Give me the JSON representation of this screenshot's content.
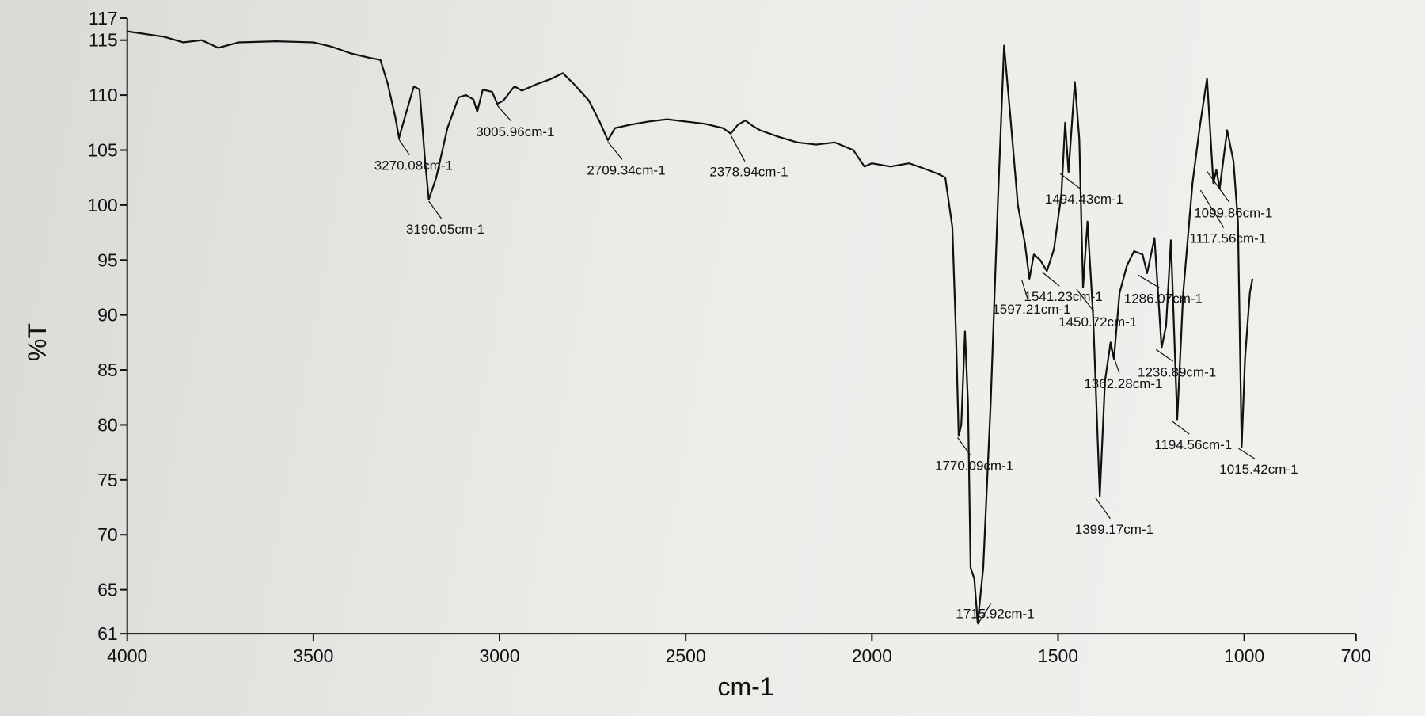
{
  "chart_data": {
    "type": "line",
    "xlabel": "cm-1",
    "ylabel": "%T",
    "xlim": [
      4000,
      700
    ],
    "xticks": [
      4000,
      3500,
      3000,
      2500,
      2000,
      1500,
      1000,
      700
    ],
    "ylim": [
      61,
      117
    ],
    "yticks": [
      61,
      65,
      70,
      75,
      80,
      85,
      90,
      95,
      100,
      105,
      110,
      115,
      117
    ],
    "color": "#111111",
    "x": [
      4000,
      3900,
      3850,
      3800,
      3756,
      3700,
      3600,
      3500,
      3450,
      3400,
      3350,
      3320,
      3300,
      3280,
      3270,
      3250,
      3230,
      3215,
      3200,
      3190,
      3170,
      3140,
      3110,
      3090,
      3070,
      3060,
      3045,
      3020,
      3006,
      2990,
      2960,
      2940,
      2900,
      2860,
      2830,
      2800,
      2760,
      2730,
      2709,
      2690,
      2650,
      2600,
      2550,
      2500,
      2450,
      2400,
      2379,
      2360,
      2340,
      2320,
      2300,
      2250,
      2200,
      2150,
      2100,
      2050,
      2020,
      2000,
      1950,
      1900,
      1850,
      1820,
      1803,
      1784,
      1774,
      1767,
      1760,
      1750,
      1742,
      1735,
      1725,
      1716,
      1701,
      1681,
      1662,
      1645,
      1628,
      1608,
      1589,
      1577,
      1565,
      1548,
      1530,
      1511,
      1491,
      1481,
      1472,
      1455,
      1443,
      1433,
      1421,
      1406,
      1388,
      1374,
      1359,
      1350,
      1335,
      1315,
      1296,
      1273,
      1261,
      1241,
      1222,
      1210,
      1197,
      1180,
      1164,
      1139,
      1120,
      1100,
      1083,
      1075,
      1066,
      1046,
      1029,
      1017,
      1007,
      998,
      985,
      978
    ],
    "values": [
      115.8,
      115.3,
      114.8,
      115.0,
      114.3,
      114.8,
      114.9,
      114.8,
      114.4,
      113.8,
      113.4,
      113.2,
      111,
      108,
      106.1,
      108.5,
      110.8,
      110.5,
      104,
      100.5,
      102.5,
      107,
      109.8,
      110,
      109.6,
      108.5,
      110.5,
      110.3,
      109.2,
      109.5,
      110.8,
      110.4,
      111,
      111.5,
      112,
      111,
      109.5,
      107.5,
      105.9,
      107,
      107.3,
      107.6,
      107.8,
      107.6,
      107.4,
      107,
      106.5,
      107.3,
      107.7,
      107.2,
      106.8,
      106.2,
      105.7,
      105.5,
      105.7,
      105,
      103.5,
      103.8,
      103.5,
      103.8,
      103.2,
      102.8,
      102.5,
      98,
      88,
      79,
      80,
      88.5,
      82,
      67,
      66,
      62,
      67,
      82,
      100,
      114.5,
      108,
      100,
      96.5,
      93.3,
      95.5,
      95,
      94,
      96,
      101,
      107.5,
      103,
      111.2,
      106,
      92.5,
      98.5,
      90,
      73.5,
      84,
      87.5,
      86,
      92,
      94.5,
      95.8,
      95.5,
      93.8,
      97,
      87,
      89,
      96.8,
      80.5,
      92,
      102,
      107,
      111.5,
      102,
      103.2,
      101.5,
      106.8,
      104,
      98.5,
      78,
      86,
      92,
      93.3
    ],
    "annotations": [
      {
        "x": 3270.08,
        "y": 106.1,
        "label": "3270.08cm-1"
      },
      {
        "x": 3190.05,
        "y": 100.5,
        "label": "3190.05cm-1"
      },
      {
        "x": 3005.96,
        "y": 109.2,
        "label": "3005.96cm-1"
      },
      {
        "x": 2709.34,
        "y": 105.9,
        "label": "2709.34cm-1"
      },
      {
        "x": 2378.94,
        "y": 106.5,
        "label": "2378.94cm-1"
      },
      {
        "x": 1770.09,
        "y": 79,
        "label": "1770.09cm-1"
      },
      {
        "x": 1715.92,
        "y": 62,
        "label": "1715.92cm-1"
      },
      {
        "x": 1597.21,
        "y": 93.3,
        "label": "1597.21cm-1"
      },
      {
        "x": 1541.23,
        "y": 94,
        "label": "1541.23cm-1"
      },
      {
        "x": 1494.43,
        "y": 103,
        "label": "1494.43cm-1"
      },
      {
        "x": 1450.72,
        "y": 92.5,
        "label": "1450.72cm-1"
      },
      {
        "x": 1399.17,
        "y": 73.5,
        "label": "1399.17cm-1"
      },
      {
        "x": 1362.28,
        "y": 87.5,
        "label": "1362.28cm-1"
      },
      {
        "x": 1286.07,
        "y": 93.8,
        "label": "1286.07cm-1"
      },
      {
        "x": 1236.89,
        "y": 87,
        "label": "1236.89cm-1"
      },
      {
        "x": 1194.56,
        "y": 80.5,
        "label": "1194.56cm-1"
      },
      {
        "x": 1117.56,
        "y": 101.5,
        "label": "1117.56cm-1"
      },
      {
        "x": 1099.86,
        "y": 103.2,
        "label": "1099.86cm-1"
      },
      {
        "x": 1015.42,
        "y": 78,
        "label": "1015.42cm-1"
      }
    ]
  }
}
